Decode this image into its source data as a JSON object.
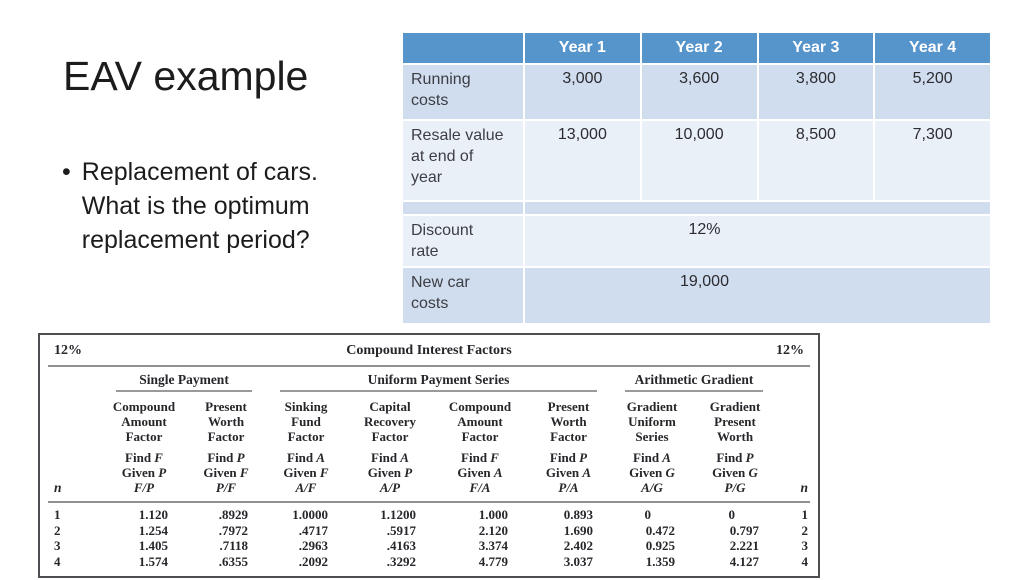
{
  "slide": {
    "title": "EAV example",
    "bullet_marker": "•",
    "bullet_lines": [
      "Replacement of cars.",
      "What is the optimum",
      "replacement period?"
    ]
  },
  "cost_table": {
    "columns": [
      "Year 1",
      "Year 2",
      "Year 3",
      "Year 4"
    ],
    "rows": [
      {
        "label_lines": [
          "Running",
          "costs"
        ],
        "values": [
          "3,000",
          "3,600",
          "3,800",
          "5,200"
        ]
      },
      {
        "label_lines": [
          "Resale value",
          "at end of",
          "year"
        ],
        "values": [
          "13,000",
          "10,000",
          "8,500",
          "7,300"
        ]
      }
    ],
    "merged_rows": [
      {
        "label_lines": [
          "Discount",
          "rate"
        ],
        "value": "12%"
      },
      {
        "label_lines": [
          "New car",
          "costs"
        ],
        "value": "19,000"
      }
    ]
  },
  "factors_table": {
    "rate_left": "12%",
    "title": "Compound Interest Factors",
    "rate_right": "12%",
    "n_label": "n",
    "groups": [
      {
        "label": "Single Payment"
      },
      {
        "label": "Uniform Payment Series"
      },
      {
        "label": "Arithmetic Gradient"
      }
    ],
    "columns": [
      {
        "l1": "Compound",
        "l2": "Amount",
        "l3": "Factor",
        "find_w": "Find",
        "find_v": "F",
        "given_w": "Given",
        "given_v": "P",
        "ratio": "F/P"
      },
      {
        "l1": "Present",
        "l2": "Worth",
        "l3": "Factor",
        "find_w": "Find",
        "find_v": "P",
        "given_w": "Given",
        "given_v": "F",
        "ratio": "P/F"
      },
      {
        "l1": "Sinking",
        "l2": "Fund",
        "l3": "Factor",
        "find_w": "Find",
        "find_v": "A",
        "given_w": "Given",
        "given_v": "F",
        "ratio": "A/F"
      },
      {
        "l1": "Capital",
        "l2": "Recovery",
        "l3": "Factor",
        "find_w": "Find",
        "find_v": "A",
        "given_w": "Given",
        "given_v": "P",
        "ratio": "A/P"
      },
      {
        "l1": "Compound",
        "l2": "Amount",
        "l3": "Factor",
        "find_w": "Find",
        "find_v": "F",
        "given_w": "Given",
        "given_v": "A",
        "ratio": "F/A"
      },
      {
        "l1": "Present",
        "l2": "Worth",
        "l3": "Factor",
        "find_w": "Find",
        "find_v": "P",
        "given_w": "Given",
        "given_v": "A",
        "ratio": "P/A"
      },
      {
        "l1": "Gradient",
        "l2": "Uniform",
        "l3": "Series",
        "find_w": "Find",
        "find_v": "A",
        "given_w": "Given",
        "given_v": "G",
        "ratio": "A/G"
      },
      {
        "l1": "Gradient",
        "l2": "Present",
        "l3": "Worth",
        "find_w": "Find",
        "find_v": "P",
        "given_w": "Given",
        "given_v": "G",
        "ratio": "P/G"
      }
    ],
    "rows": [
      {
        "n": "1",
        "c": [
          "1.120",
          ".8929",
          "1.0000",
          "1.1200",
          "1.000",
          "0.893",
          "0",
          "0"
        ]
      },
      {
        "n": "2",
        "c": [
          "1.254",
          ".7972",
          ".4717",
          ".5917",
          "2.120",
          "1.690",
          "0.472",
          "0.797"
        ]
      },
      {
        "n": "3",
        "c": [
          "1.405",
          ".7118",
          ".2963",
          ".4163",
          "3.374",
          "2.402",
          "0.925",
          "2.221"
        ]
      },
      {
        "n": "4",
        "c": [
          "1.574",
          ".6355",
          ".2092",
          ".3292",
          "4.779",
          "3.037",
          "1.359",
          "4.127"
        ]
      }
    ]
  }
}
